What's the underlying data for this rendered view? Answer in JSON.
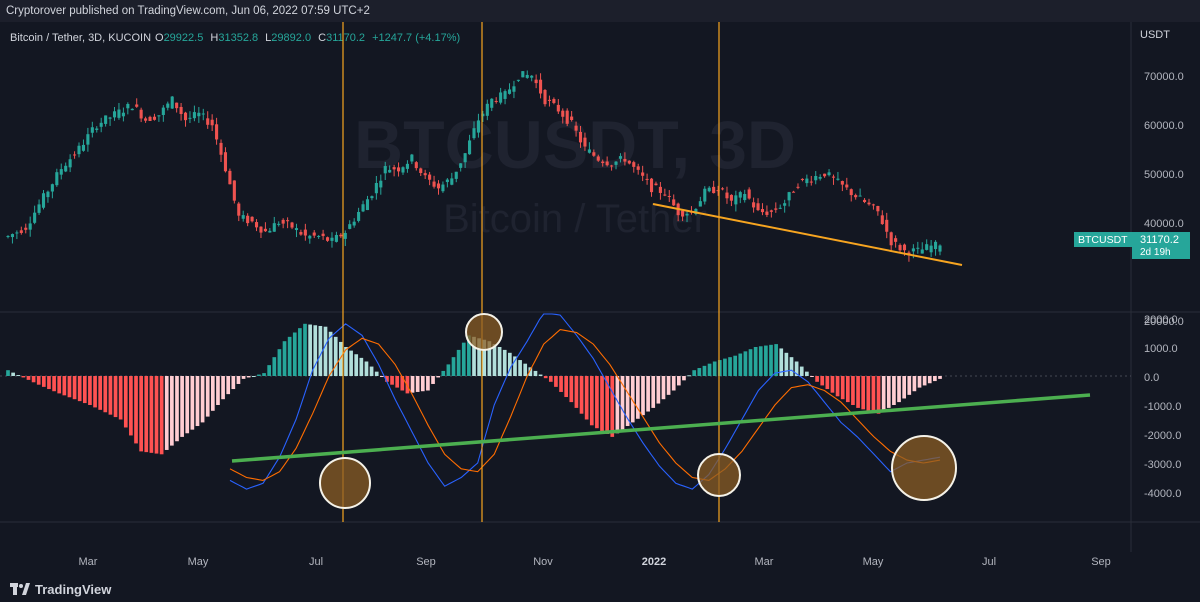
{
  "header": {
    "publisher_line": "Cryptorover published on TradingView.com, Jun 06, 2022 07:59 UTC+2"
  },
  "symbol_info": {
    "title": "Bitcoin / Tether, 3D, KUCOIN",
    "open_label": "O",
    "open": "29922.5",
    "high_label": "H",
    "high": "31352.8",
    "low_label": "L",
    "low": "29892.0",
    "close_label": "C",
    "close": "31170.2",
    "change": "+1247.7 (+4.17%)"
  },
  "watermark": {
    "ticker": "BTCUSDT, 3D",
    "name": "Bitcoin / Tether"
  },
  "price_axis": {
    "currency": "USDT",
    "ticks": [
      "70000.0",
      "60000.0",
      "50000.0",
      "40000.0",
      "30000.0",
      "20000.0"
    ]
  },
  "price_tag": {
    "symbol": "BTCUSDT",
    "price": "31170.2",
    "countdown": "2d 19h"
  },
  "macd_axis": {
    "ticks": [
      "2000.0",
      "1000.0",
      "0.0",
      "-1000.0",
      "-2000.0",
      "-3000.0",
      "-4000.0"
    ]
  },
  "time_axis": {
    "labels": [
      "Mar",
      "May",
      "Jul",
      "Sep",
      "Nov",
      "2022",
      "Mar",
      "May",
      "Jul",
      "Sep"
    ]
  },
  "footer": {
    "brand": "TradingView"
  },
  "colors": {
    "up": "#26a69a",
    "down": "#ef5350",
    "macd_line": "#2962ff",
    "signal_line": "#ff6d00",
    "orange": "#f7a520",
    "green_line": "#4caf50",
    "hist_up_strong": "#26a69a",
    "hist_up_weak": "#b2dfdb",
    "hist_down_strong": "#ff5252",
    "hist_down_weak": "#ffcdd2"
  },
  "chart_data": {
    "type": "candlestick",
    "price_ylim": [
      20000,
      70000
    ],
    "macd_ylim": [
      -4000,
      2000
    ],
    "months": [
      "Mar",
      "May",
      "Jul",
      "Sep",
      "Nov",
      "2022",
      "Mar",
      "May",
      "Jul",
      "Sep"
    ],
    "price_path": [
      [
        0,
        33000
      ],
      [
        4,
        35000
      ],
      [
        8,
        41000
      ],
      [
        12,
        47000
      ],
      [
        16,
        51000
      ],
      [
        20,
        56000
      ],
      [
        24,
        58000
      ],
      [
        28,
        60000
      ],
      [
        31,
        57000
      ],
      [
        34,
        58000
      ],
      [
        37,
        61000
      ],
      [
        40,
        57000
      ],
      [
        43,
        58000
      ],
      [
        46,
        56000
      ],
      [
        49,
        47000
      ],
      [
        52,
        37000
      ],
      [
        55,
        36000
      ],
      [
        58,
        34000
      ],
      [
        61,
        36000
      ],
      [
        64,
        35000
      ],
      [
        67,
        33000
      ],
      [
        70,
        33000
      ],
      [
        73,
        32000
      ],
      [
        76,
        34000
      ],
      [
        79,
        38000
      ],
      [
        82,
        42000
      ],
      [
        85,
        47000
      ],
      [
        88,
        47000
      ],
      [
        91,
        49000
      ],
      [
        94,
        45000
      ],
      [
        97,
        43000
      ],
      [
        100,
        45000
      ],
      [
        103,
        50000
      ],
      [
        106,
        57000
      ],
      [
        109,
        61000
      ],
      [
        112,
        62000
      ],
      [
        115,
        66000
      ],
      [
        118,
        66000
      ],
      [
        121,
        61000
      ],
      [
        124,
        59000
      ],
      [
        127,
        56000
      ],
      [
        130,
        51000
      ],
      [
        133,
        49000
      ],
      [
        136,
        48000
      ],
      [
        139,
        49000
      ],
      [
        142,
        46000
      ],
      [
        145,
        43000
      ],
      [
        148,
        42000
      ],
      [
        151,
        38000
      ],
      [
        154,
        38000
      ],
      [
        157,
        42000
      ],
      [
        160,
        43000
      ],
      [
        163,
        40000
      ],
      [
        166,
        42000
      ],
      [
        169,
        38000
      ],
      [
        172,
        38000
      ],
      [
        175,
        40000
      ],
      [
        178,
        44000
      ],
      [
        181,
        45000
      ],
      [
        184,
        46000
      ],
      [
        187,
        44000
      ],
      [
        190,
        42000
      ],
      [
        193,
        40000
      ],
      [
        196,
        38000
      ],
      [
        199,
        32000
      ],
      [
        202,
        30000
      ],
      [
        205,
        30000
      ],
      [
        208,
        31000
      ],
      [
        210,
        31170
      ]
    ],
    "macd_histogram_path": [
      [
        0,
        200
      ],
      [
        6,
        -300
      ],
      [
        10,
        -600
      ],
      [
        16,
        -1000
      ],
      [
        22,
        -1500
      ],
      [
        26,
        -2600
      ],
      [
        30,
        -2700
      ],
      [
        34,
        -2100
      ],
      [
        38,
        -1600
      ],
      [
        42,
        -800
      ],
      [
        46,
        -100
      ],
      [
        50,
        100
      ],
      [
        54,
        1200
      ],
      [
        58,
        1800
      ],
      [
        62,
        1700
      ],
      [
        66,
        1000
      ],
      [
        70,
        500
      ],
      [
        74,
        -200
      ],
      [
        78,
        -600
      ],
      [
        82,
        -500
      ],
      [
        86,
        400
      ],
      [
        90,
        1400
      ],
      [
        94,
        1200
      ],
      [
        98,
        800
      ],
      [
        102,
        300
      ],
      [
        106,
        -200
      ],
      [
        110,
        -900
      ],
      [
        114,
        -1700
      ],
      [
        118,
        -2100
      ],
      [
        122,
        -1600
      ],
      [
        126,
        -1100
      ],
      [
        130,
        -500
      ],
      [
        134,
        200
      ],
      [
        138,
        500
      ],
      [
        142,
        700
      ],
      [
        146,
        1000
      ],
      [
        150,
        1100
      ],
      [
        154,
        500
      ],
      [
        158,
        -200
      ],
      [
        162,
        -700
      ],
      [
        166,
        -1100
      ],
      [
        170,
        -1300
      ],
      [
        174,
        -900
      ],
      [
        178,
        -400
      ],
      [
        182,
        -100
      ]
    ],
    "macd_line_path": [
      [
        0,
        -3600
      ],
      [
        4,
        -3900
      ],
      [
        8,
        -3700
      ],
      [
        12,
        -2800
      ],
      [
        16,
        -1500
      ],
      [
        20,
        200
      ],
      [
        24,
        1300
      ],
      [
        28,
        1800
      ],
      [
        32,
        1400
      ],
      [
        36,
        400
      ],
      [
        40,
        -800
      ],
      [
        44,
        -1900
      ],
      [
        48,
        -3000
      ],
      [
        52,
        -3800
      ],
      [
        56,
        -3500
      ],
      [
        60,
        -3000
      ],
      [
        64,
        -1000
      ],
      [
        68,
        300
      ],
      [
        72,
        1200
      ],
      [
        76,
        2200
      ],
      [
        80,
        2100
      ],
      [
        84,
        1400
      ],
      [
        88,
        600
      ],
      [
        92,
        -400
      ],
      [
        96,
        -1400
      ],
      [
        100,
        -2300
      ],
      [
        104,
        -3100
      ],
      [
        108,
        -3700
      ],
      [
        112,
        -3900
      ],
      [
        116,
        -3400
      ],
      [
        120,
        -2500
      ],
      [
        124,
        -1500
      ],
      [
        128,
        -500
      ],
      [
        132,
        100
      ],
      [
        136,
        200
      ],
      [
        140,
        -200
      ],
      [
        144,
        -900
      ],
      [
        148,
        -1600
      ],
      [
        152,
        -2100
      ],
      [
        156,
        -2700
      ],
      [
        160,
        -3300
      ],
      [
        164,
        -3000
      ],
      [
        168,
        -2900
      ],
      [
        172,
        -2800
      ]
    ],
    "signal_line_path": [
      [
        0,
        -3200
      ],
      [
        4,
        -3500
      ],
      [
        8,
        -3600
      ],
      [
        12,
        -3300
      ],
      [
        16,
        -2500
      ],
      [
        20,
        -1300
      ],
      [
        24,
        0
      ],
      [
        28,
        900
      ],
      [
        32,
        1300
      ],
      [
        36,
        1100
      ],
      [
        40,
        400
      ],
      [
        44,
        -600
      ],
      [
        48,
        -1700
      ],
      [
        52,
        -2700
      ],
      [
        56,
        -3200
      ],
      [
        60,
        -3300
      ],
      [
        64,
        -2700
      ],
      [
        68,
        -1400
      ],
      [
        72,
        0
      ],
      [
        76,
        1100
      ],
      [
        80,
        1600
      ],
      [
        84,
        1500
      ],
      [
        88,
        1100
      ],
      [
        92,
        400
      ],
      [
        96,
        -500
      ],
      [
        100,
        -1400
      ],
      [
        104,
        -2300
      ],
      [
        108,
        -3000
      ],
      [
        112,
        -3500
      ],
      [
        116,
        -3600
      ],
      [
        120,
        -3200
      ],
      [
        124,
        -2600
      ],
      [
        128,
        -1800
      ],
      [
        132,
        -1000
      ],
      [
        136,
        -400
      ],
      [
        140,
        -300
      ],
      [
        144,
        -500
      ],
      [
        148,
        -900
      ],
      [
        152,
        -1500
      ],
      [
        156,
        -2100
      ],
      [
        160,
        -2600
      ],
      [
        164,
        -2900
      ],
      [
        168,
        -3000
      ],
      [
        172,
        -2900
      ]
    ],
    "markers": {
      "vertical_lines_month_index": [
        3.2,
        5.05,
        6.5
      ],
      "price_trendline": [
        [
          40000,
          "Dec"
        ],
        [
          27500,
          "Jun"
        ]
      ],
      "macd_support_line": [
        [
          -3000,
          "May"
        ],
        [
          -600,
          "Sep"
        ]
      ],
      "circles": [
        "Jul bottom",
        "Oct peak",
        "Feb bottom",
        "Jun bottom"
      ]
    }
  }
}
